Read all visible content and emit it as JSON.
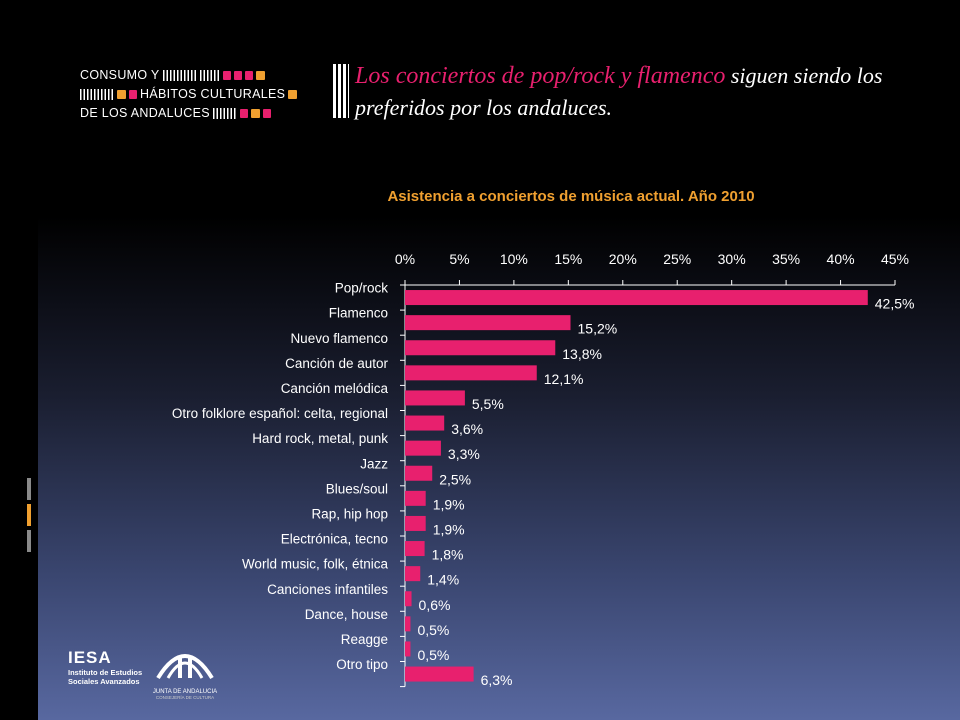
{
  "header": {
    "logo_line1": "CONSUMO Y",
    "logo_line2": "HÁBITOS CULTURALES",
    "logo_line3": "DE LOS ANDALUCES",
    "headline_pink": "Los conciertos de pop/rock y flamenco",
    "headline_rest": " siguen siendo los preferidos por los andaluces."
  },
  "footer": {
    "iesa_name": "IESA",
    "iesa_sub1": "Instituto de Estudios",
    "iesa_sub2": "Sociales Avanzados",
    "junta_name": "JUNTA DE ANDALUCIA",
    "junta_sub": "CONSEJERÍA DE CULTURA"
  },
  "colors": {
    "bar": "#e8206e",
    "title": "#f0a030",
    "accent": "#e8206e"
  },
  "chart_data": {
    "type": "bar",
    "orientation": "horizontal",
    "title": "Asistencia a conciertos de música actual. Año 2010",
    "xlim": [
      0,
      45
    ],
    "x_ticks": [
      "0%",
      "5%",
      "10%",
      "15%",
      "20%",
      "25%",
      "30%",
      "35%",
      "40%",
      "45%"
    ],
    "x_axis_position": "top",
    "grid": false,
    "categories": [
      "Pop/rock",
      "Flamenco",
      "Nuevo flamenco",
      "Canción de autor",
      "Canción melódica",
      "Otro folklore español: celta, regional",
      "Hard rock, metal, punk",
      "Jazz",
      "Blues/soul",
      "Rap, hip hop",
      "Electrónica, tecno",
      "World music, folk, étnica",
      "Canciones infantiles",
      "Dance, house",
      "Reagge",
      "Otro tipo"
    ],
    "values": [
      42.5,
      15.2,
      13.8,
      12.1,
      5.5,
      3.6,
      3.3,
      2.5,
      1.9,
      1.9,
      1.8,
      1.4,
      0.6,
      0.5,
      0.5,
      6.3
    ],
    "value_labels": [
      "42,5%",
      "15,2%",
      "13,8%",
      "12,1%",
      "5,5%",
      "3,6%",
      "3,3%",
      "2,5%",
      "1,9%",
      "1,9%",
      "1,8%",
      "1,4%",
      "0,6%",
      "0,5%",
      "0,5%",
      "6,3%"
    ]
  }
}
